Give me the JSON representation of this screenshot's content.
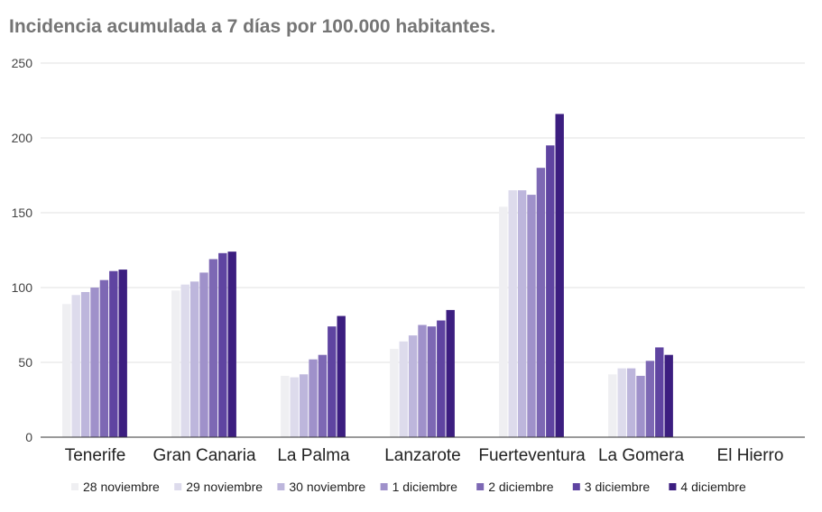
{
  "chart_data": {
    "type": "bar",
    "title": "Incidencia acumulada a 7 días por 100.000 habitantes.",
    "xlabel": "",
    "ylabel": "",
    "ylim": [
      0,
      250
    ],
    "yticks": [
      0,
      50,
      100,
      150,
      200,
      250
    ],
    "grid": true,
    "legend_position": "bottom",
    "categories": [
      "Tenerife",
      "Gran Canaria",
      "La Palma",
      "Lanzarote",
      "Fuerteventura",
      "La Gomera",
      "El Hierro"
    ],
    "series": [
      {
        "name": "28 noviembre",
        "color": "#efeff2",
        "values": [
          89,
          98,
          41,
          59,
          154,
          42,
          0
        ]
      },
      {
        "name": "29 noviembre",
        "color": "#dddbec",
        "values": [
          95,
          102,
          40,
          64,
          165,
          46,
          0
        ]
      },
      {
        "name": "30 noviembre",
        "color": "#bdb6dc",
        "values": [
          97,
          104,
          42,
          68,
          165,
          46,
          0
        ]
      },
      {
        "name": "1 diciembre",
        "color": "#9f91ca",
        "values": [
          100,
          110,
          52,
          75,
          162,
          41,
          0
        ]
      },
      {
        "name": "2 diciembre",
        "color": "#7d68b4",
        "values": [
          105,
          119,
          55,
          74,
          180,
          51,
          0
        ]
      },
      {
        "name": "3 diciembre",
        "color": "#5f44a1",
        "values": [
          111,
          123,
          74,
          78,
          195,
          60,
          0
        ]
      },
      {
        "name": "4 diciembre",
        "color": "#3c1e80",
        "values": [
          112,
          124,
          81,
          85,
          216,
          55,
          0
        ]
      }
    ]
  }
}
